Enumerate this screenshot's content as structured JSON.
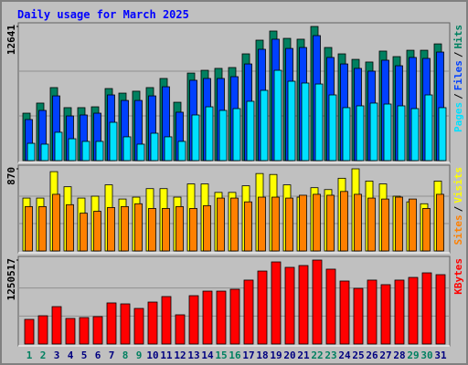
{
  "chart_data": [
    {
      "type": "bar",
      "title": "Daily usage for March 2025",
      "legend_separator": "/",
      "ylim": [
        0,
        12641
      ],
      "yticks": [
        12641
      ],
      "series": [
        {
          "name": "Pages",
          "color": "#00e0ff",
          "values": [
            1630,
            1550,
            2670,
            2060,
            1810,
            1810,
            3610,
            2240,
            1550,
            2580,
            2240,
            1810,
            4300,
            5070,
            4730,
            4900,
            5590,
            6620,
            8510,
            7480,
            7310,
            7220,
            6190,
            4990,
            5160,
            5420,
            5330,
            5160,
            4900,
            6190,
            4990
          ]
        },
        {
          "name": "Files",
          "color": "#0040ff",
          "values": [
            3870,
            4730,
            6100,
            4210,
            4300,
            4470,
            6190,
            5670,
            5670,
            6100,
            6960,
            4560,
            7570,
            7740,
            7740,
            7910,
            9110,
            10490,
            11440,
            10570,
            10660,
            11780,
            9720,
            9110,
            8690,
            8430,
            9460,
            8940,
            9720,
            9630,
            10230
          ]
        },
        {
          "name": "Hits",
          "color": "#008060",
          "values": [
            4470,
            5420,
            6880,
            4990,
            4990,
            5070,
            6790,
            6360,
            6540,
            6880,
            7740,
            5500,
            8250,
            8510,
            8690,
            8770,
            10060,
            11350,
            12210,
            11520,
            11440,
            12641,
            10660,
            10060,
            9540,
            9290,
            10320,
            9800,
            10400,
            10400,
            11000
          ]
        }
      ]
    },
    {
      "type": "bar",
      "legend_separator": "/",
      "ylim": [
        0,
        870
      ],
      "yticks": [
        870
      ],
      "series": [
        {
          "name": "Sites",
          "color": "#ff8000",
          "values": [
            470,
            470,
            600,
            490,
            400,
            420,
            460,
            470,
            500,
            450,
            450,
            470,
            450,
            480,
            560,
            560,
            520,
            570,
            570,
            560,
            590,
            600,
            590,
            630,
            600,
            560,
            550,
            570,
            550,
            450,
            600
          ]
        },
        {
          "name": "Visits",
          "color": "#ffff00",
          "values": [
            560,
            560,
            840,
            680,
            560,
            580,
            700,
            550,
            570,
            660,
            660,
            570,
            710,
            710,
            620,
            620,
            690,
            820,
            810,
            700,
            570,
            670,
            650,
            770,
            870,
            740,
            710,
            580,
            520,
            500,
            740
          ]
        }
      ]
    },
    {
      "type": "bar",
      "ylim": [
        0,
        1250517
      ],
      "yticks": [
        1250517
      ],
      "categories": [
        "1",
        "2",
        "3",
        "4",
        "5",
        "6",
        "7",
        "8",
        "9",
        "10",
        "11",
        "12",
        "13",
        "14",
        "15",
        "16",
        "17",
        "18",
        "19",
        "20",
        "21",
        "22",
        "23",
        "24",
        "25",
        "26",
        "27",
        "28",
        "29",
        "30",
        "31"
      ],
      "category_colors": [
        "#008060",
        "#008060",
        "#000080",
        "#000080",
        "#000080",
        "#000080",
        "#000080",
        "#008060",
        "#008060",
        "#000080",
        "#000080",
        "#000080",
        "#000080",
        "#000080",
        "#008060",
        "#008060",
        "#000080",
        "#000080",
        "#000080",
        "#000080",
        "#000080",
        "#008060",
        "#008060",
        "#000080",
        "#000080",
        "#000080",
        "#000080",
        "#000080",
        "#008060",
        "#008060",
        "#000080"
      ],
      "series": [
        {
          "name": "KBytes",
          "color": "#ff0000",
          "values": [
            367000,
            421000,
            557000,
            381000,
            394000,
            408000,
            612000,
            598000,
            530000,
            625000,
            707000,
            435000,
            720000,
            788000,
            788000,
            816000,
            952000,
            1087000,
            1223000,
            1142000,
            1169000,
            1250517,
            1115000,
            938000,
            829000,
            952000,
            884000,
            952000,
            992000,
            1060000,
            1033000
          ]
        }
      ]
    }
  ]
}
